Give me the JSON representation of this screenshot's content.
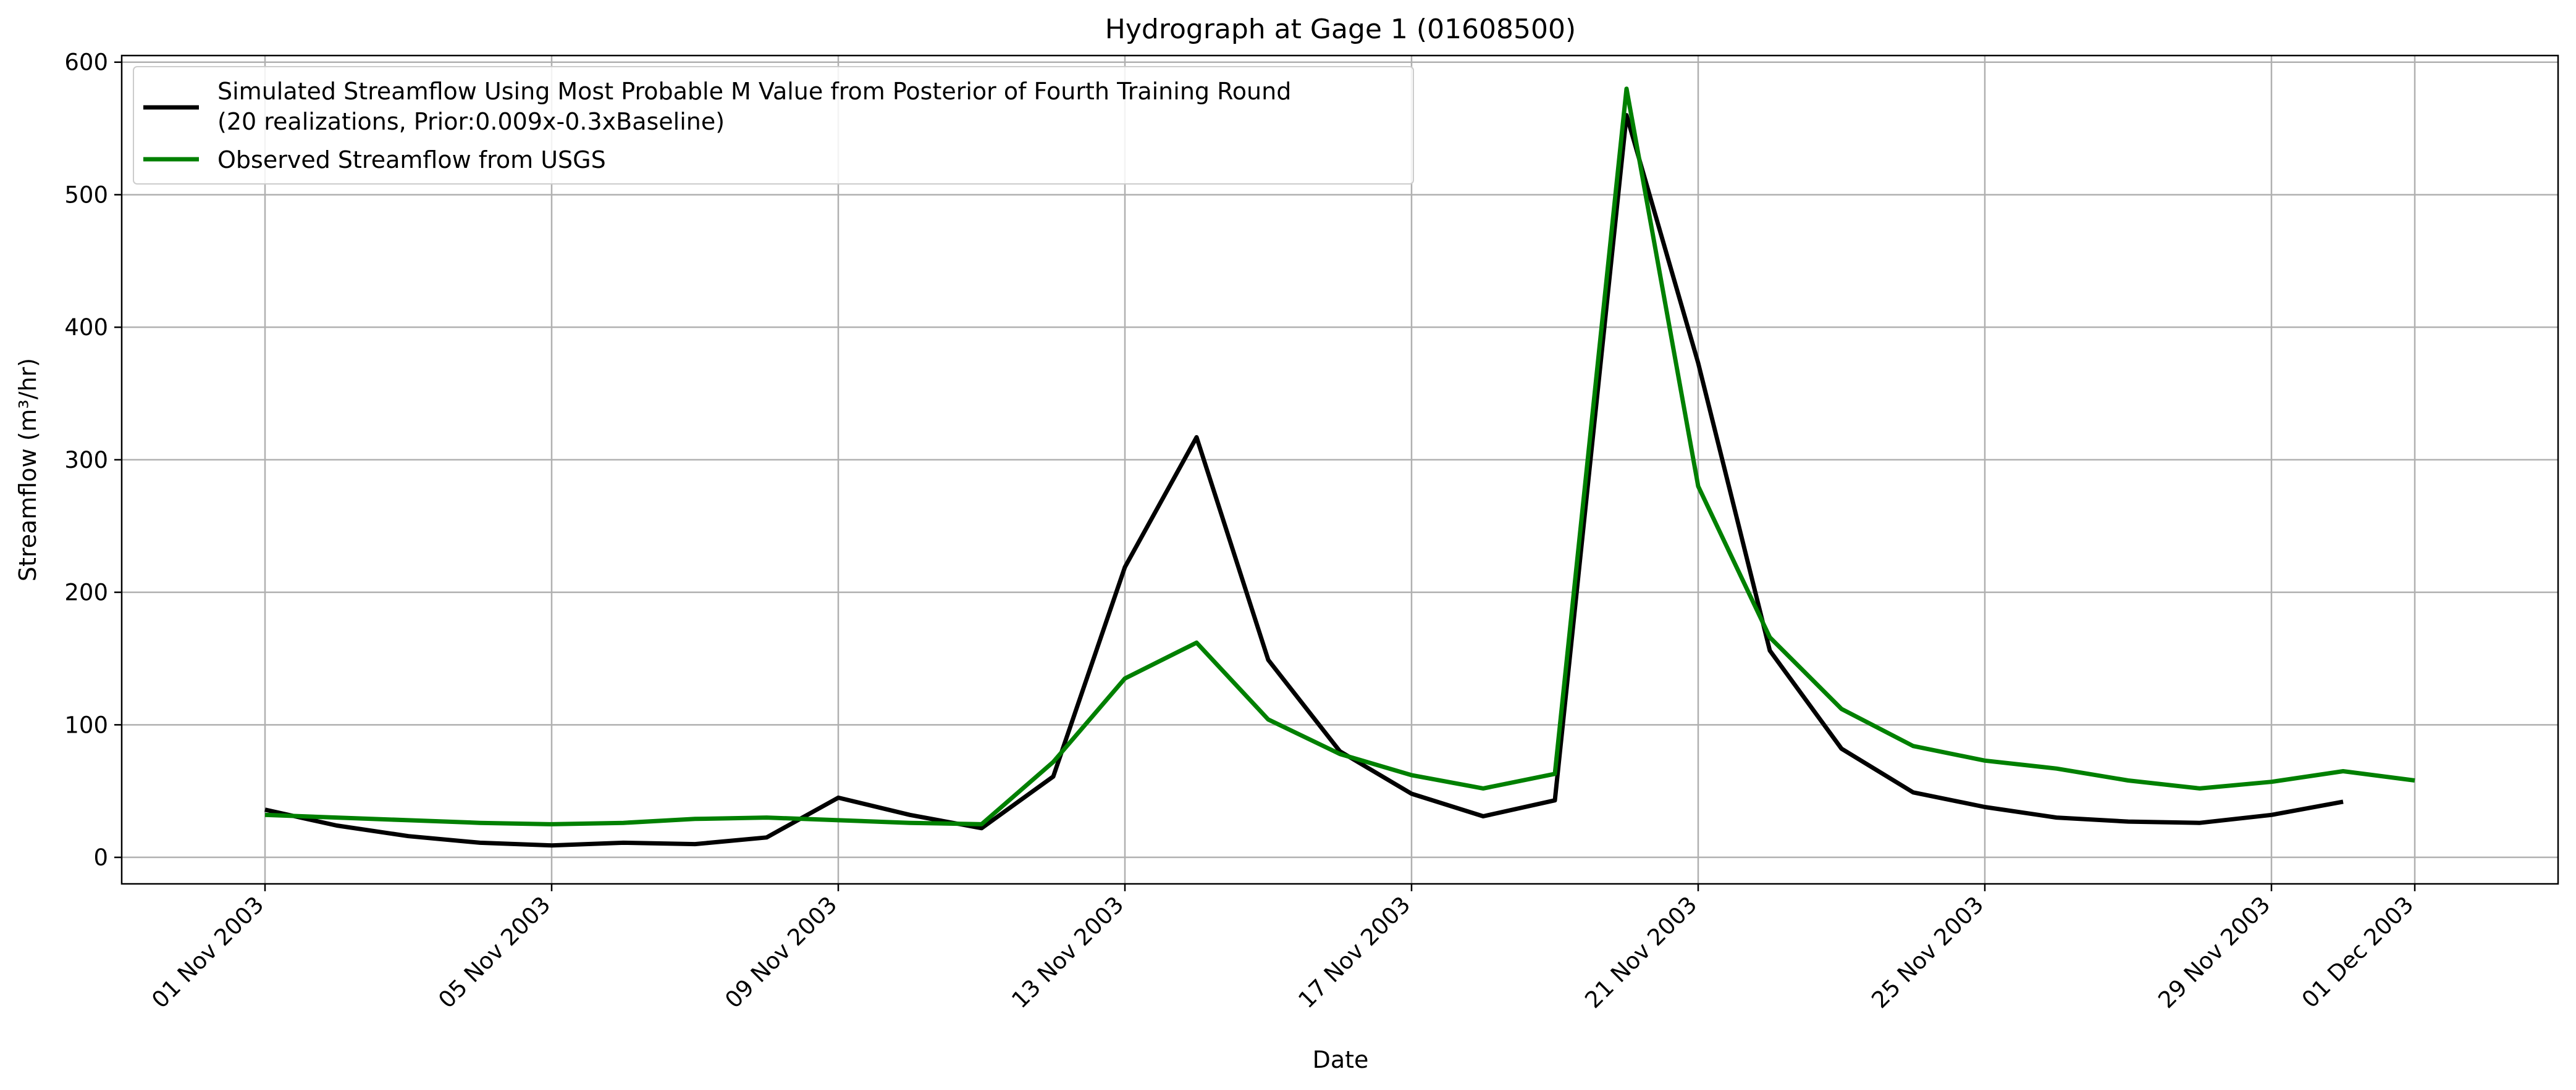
{
  "chart_data": {
    "type": "line",
    "title": "Hydrograph at Gage 1 (01608500)",
    "xlabel": "Date",
    "ylabel": "Streamflow (m³/hr)",
    "x_start": "2003-11-01",
    "x_end": "2003-12-01",
    "xlim": [
      "2003-10-30",
      "2003-12-03"
    ],
    "ylim": [
      -20,
      605
    ],
    "grid": true,
    "legend_position": "top-left",
    "x_ticks": [
      "01 Nov 2003",
      "05 Nov 2003",
      "09 Nov 2003",
      "13 Nov 2003",
      "17 Nov 2003",
      "21 Nov 2003",
      "25 Nov 2003",
      "29 Nov 2003",
      "01 Dec 2003"
    ],
    "y_ticks": [
      0,
      100,
      200,
      300,
      400,
      500,
      600
    ],
    "series": [
      {
        "name": "Simulated Streamflow Using Most Probable M Value from Posterior of Fourth Training Round",
        "name_line2": "(20 realizations, Prior:0.009x-0.3xBaseline)",
        "color": "#000000",
        "x": [
          "2003-11-01",
          "2003-11-02",
          "2003-11-03",
          "2003-11-04",
          "2003-11-05",
          "2003-11-06",
          "2003-11-07",
          "2003-11-08",
          "2003-11-09",
          "2003-11-10",
          "2003-11-11",
          "2003-11-12",
          "2003-11-13",
          "2003-11-14",
          "2003-11-15",
          "2003-11-16",
          "2003-11-17",
          "2003-11-18",
          "2003-11-19",
          "2003-11-20",
          "2003-11-21",
          "2003-11-22",
          "2003-11-23",
          "2003-11-24",
          "2003-11-25",
          "2003-11-26",
          "2003-11-27",
          "2003-11-28",
          "2003-11-29",
          "2003-11-30"
        ],
        "values": [
          36,
          24,
          16,
          11,
          9,
          11,
          10,
          15,
          45,
          32,
          22,
          61,
          219,
          317,
          149,
          80,
          48,
          31,
          43,
          560,
          373,
          156,
          82,
          49,
          38,
          30,
          27,
          26,
          32,
          42
        ]
      },
      {
        "name": "Observed Streamflow from USGS",
        "color": "#008000",
        "x": [
          "2003-11-01",
          "2003-11-02",
          "2003-11-03",
          "2003-11-04",
          "2003-11-05",
          "2003-11-06",
          "2003-11-07",
          "2003-11-08",
          "2003-11-09",
          "2003-11-10",
          "2003-11-11",
          "2003-11-12",
          "2003-11-13",
          "2003-11-14",
          "2003-11-15",
          "2003-11-16",
          "2003-11-17",
          "2003-11-18",
          "2003-11-19",
          "2003-11-20",
          "2003-11-21",
          "2003-11-22",
          "2003-11-23",
          "2003-11-24",
          "2003-11-25",
          "2003-11-26",
          "2003-11-27",
          "2003-11-28",
          "2003-11-29",
          "2003-11-30",
          "2003-12-01"
        ],
        "values": [
          32,
          30,
          28,
          26,
          25,
          26,
          29,
          30,
          28,
          26,
          25,
          72,
          135,
          162,
          104,
          78,
          62,
          52,
          63,
          580,
          280,
          166,
          112,
          84,
          73,
          67,
          58,
          52,
          57,
          65,
          58
        ]
      }
    ]
  }
}
